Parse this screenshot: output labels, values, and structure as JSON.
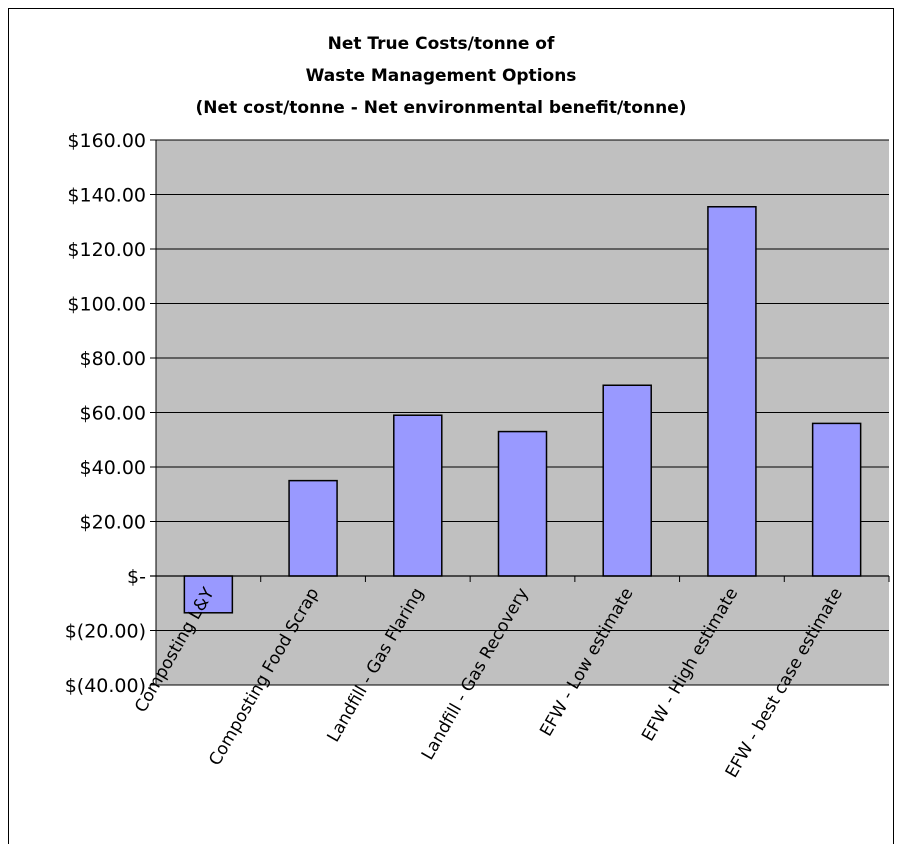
{
  "chart_data": {
    "type": "bar",
    "title_lines": [
      "Net True Costs/tonne of",
      "Waste Management Options",
      "(Net cost/tonne - Net environmental benefit/tonne)"
    ],
    "categories": [
      "Composting L&Y",
      "Composting Food Scrap",
      "Landfill - Gas Flaring",
      "Landfill - Gas Recovery",
      "EFW - Low estimate",
      "EFW - High estimate",
      "EFW - best case estimate"
    ],
    "values": [
      -13.5,
      35,
      59,
      53,
      70,
      135.5,
      56
    ],
    "ylim": [
      -40,
      160
    ],
    "yticks": [
      160,
      140,
      120,
      100,
      80,
      60,
      40,
      20,
      0,
      -20,
      -40
    ],
    "ytick_labels": [
      "$160.00",
      "$140.00",
      "$120.00",
      "$100.00",
      "$80.00",
      "$60.00",
      "$40.00",
      "$20.00",
      "$-",
      "$(20.00)",
      "$(40.00)"
    ],
    "grid": true,
    "colors": {
      "bar_fill": "#9999ff",
      "bar_stroke": "#000000",
      "plot_background": "#c0c0c0",
      "gridline": "#000000"
    }
  }
}
